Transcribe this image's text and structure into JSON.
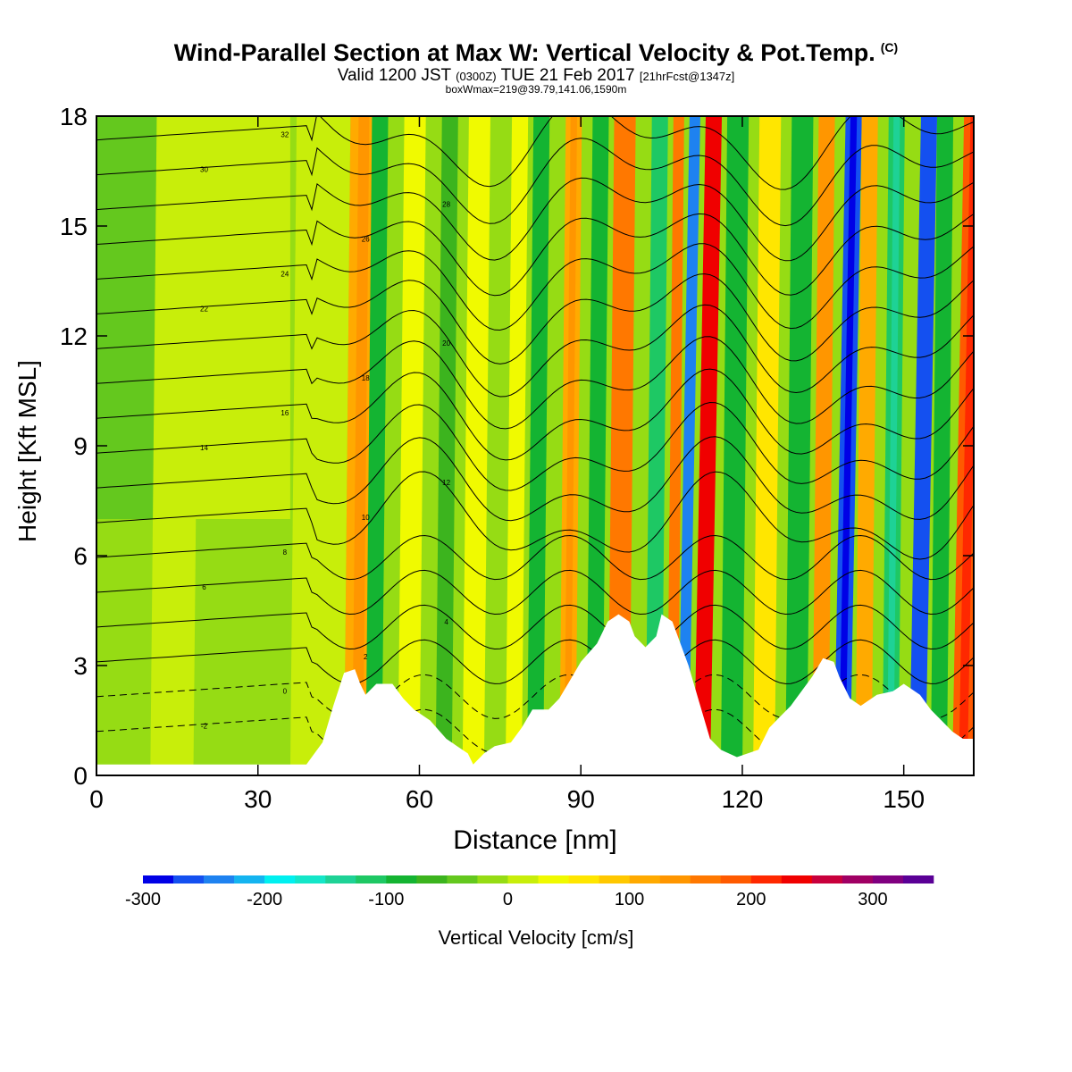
{
  "chart_data": {
    "type": "heatmap",
    "title": "Wind-Parallel Section at Max W: Vertical Velocity & Pot.Temp.",
    "copyright": "(C)",
    "valid_parts": {
      "prefix": "Valid 1200 JST",
      "utc": "(0300Z)",
      "date": "TUE 21 Feb 2017",
      "forecast": "[21hrFcst@1347z]"
    },
    "box_info": "boxWmax=219@39.79,141.06,1590m",
    "xlabel": "Distance [nm]",
    "ylabel": "Height [Kft MSL]",
    "xlim": [
      0,
      163
    ],
    "ylim": [
      0,
      18
    ],
    "x_ticks": [
      0,
      30,
      60,
      90,
      120,
      150
    ],
    "y_ticks": [
      0,
      3,
      6,
      9,
      12,
      15,
      18
    ],
    "x_tick_labels": [
      "0",
      "30",
      "60",
      "90",
      "120",
      "150"
    ],
    "y_tick_labels": [
      "0",
      "3",
      "6",
      "9",
      "12",
      "15",
      "18"
    ],
    "colorbar": {
      "label": "Vertical Velocity [cm/s]",
      "ticks": [
        "-300",
        "-200",
        "-100",
        "0",
        "100",
        "200",
        "300"
      ],
      "tick_values": [
        -300,
        -200,
        -100,
        0,
        100,
        200,
        300
      ],
      "range": [
        -300,
        350
      ],
      "step": 25,
      "colors": [
        "#0000e6",
        "#1450f0",
        "#1e82f0",
        "#14b4f0",
        "#00f0f0",
        "#14e6c8",
        "#1ed296",
        "#1ec864",
        "#14b432",
        "#3cb41e",
        "#64c81e",
        "#96dc14",
        "#c8ee0a",
        "#f0fa00",
        "#ffe600",
        "#ffc800",
        "#ffaa00",
        "#ff9600",
        "#ff7800",
        "#ff5a00",
        "#ff2800",
        "#f00000",
        "#c8003c",
        "#a00064",
        "#800080",
        "#5a0096"
      ]
    },
    "velocity_bands": [
      {
        "x": 10,
        "w": 8,
        "value": 20
      },
      {
        "x": 36,
        "w": 10,
        "value": 10
      },
      {
        "x": 46,
        "w": 5,
        "value": 120
      },
      {
        "x": 50,
        "w": 3,
        "value": -80
      },
      {
        "x": 56,
        "w": 4,
        "value": 40
      },
      {
        "x": 63,
        "w": 3,
        "value": -60
      },
      {
        "x": 68,
        "w": 4,
        "value": 30
      },
      {
        "x": 76,
        "w": 3,
        "value": 40
      },
      {
        "x": 80,
        "w": 3,
        "value": -90
      },
      {
        "x": 86,
        "w": 3,
        "value": 120
      },
      {
        "x": 91,
        "w": 3,
        "value": -100
      },
      {
        "x": 95,
        "w": 4,
        "value": 150
      },
      {
        "x": 102,
        "w": 3,
        "value": -110
      },
      {
        "x": 106,
        "w": 2,
        "value": 150
      },
      {
        "x": 108,
        "w": 2,
        "value": -240
      },
      {
        "x": 111,
        "w": 3,
        "value": 230
      },
      {
        "x": 116,
        "w": 4,
        "value": -90
      },
      {
        "x": 122,
        "w": 4,
        "value": 60
      },
      {
        "x": 128,
        "w": 4,
        "value": -80
      },
      {
        "x": 133,
        "w": 3,
        "value": 130
      },
      {
        "x": 137,
        "w": 3,
        "value": -270
      },
      {
        "x": 141,
        "w": 3,
        "value": 110
      },
      {
        "x": 146,
        "w": 3,
        "value": -120
      },
      {
        "x": 151,
        "w": 3,
        "value": -260
      },
      {
        "x": 155,
        "w": 3,
        "value": -100
      },
      {
        "x": 159,
        "w": 4,
        "value": 190
      }
    ],
    "terrain": [
      [
        0,
        0.3
      ],
      [
        20,
        0.3
      ],
      [
        39,
        0.3
      ],
      [
        40,
        0.5
      ],
      [
        42,
        0.9
      ],
      [
        44,
        1.9
      ],
      [
        46,
        2.8
      ],
      [
        48,
        2.9
      ],
      [
        49,
        2.5
      ],
      [
        50,
        2.2
      ],
      [
        52,
        2.5
      ],
      [
        55,
        2.5
      ],
      [
        57,
        2.1
      ],
      [
        59,
        1.8
      ],
      [
        62,
        1.5
      ],
      [
        65,
        1.0
      ],
      [
        67,
        0.8
      ],
      [
        69,
        0.6
      ],
      [
        70,
        0.3
      ],
      [
        72,
        0.6
      ],
      [
        74,
        0.8
      ],
      [
        77,
        0.9
      ],
      [
        79,
        1.3
      ],
      [
        81,
        1.8
      ],
      [
        84,
        1.8
      ],
      [
        86,
        2.1
      ],
      [
        88,
        2.6
      ],
      [
        90,
        3.1
      ],
      [
        93,
        3.6
      ],
      [
        95,
        4.2
      ],
      [
        97,
        4.4
      ],
      [
        99,
        4.2
      ],
      [
        100,
        3.8
      ],
      [
        102,
        3.5
      ],
      [
        104,
        3.8
      ],
      [
        105,
        4.4
      ],
      [
        107,
        4.2
      ],
      [
        108,
        3.8
      ],
      [
        110,
        3.0
      ],
      [
        112,
        2.0
      ],
      [
        114,
        1.0
      ],
      [
        116,
        0.7
      ],
      [
        119,
        0.5
      ],
      [
        123,
        0.7
      ],
      [
        125,
        1.3
      ],
      [
        127,
        1.6
      ],
      [
        129,
        1.9
      ],
      [
        131,
        2.3
      ],
      [
        133,
        2.7
      ],
      [
        135,
        3.2
      ],
      [
        137,
        3.1
      ],
      [
        138,
        2.7
      ],
      [
        140,
        2.1
      ],
      [
        142,
        1.9
      ],
      [
        145,
        2.2
      ],
      [
        148,
        2.3
      ],
      [
        150,
        2.5
      ],
      [
        153,
        2.2
      ],
      [
        155,
        1.8
      ],
      [
        157,
        1.5
      ],
      [
        159,
        1.2
      ],
      [
        161,
        1.0
      ],
      [
        163,
        1.0
      ]
    ],
    "potential_temperature_label_values": [
      "-2",
      "0",
      "2",
      "4",
      "6",
      "8",
      "10",
      "12",
      "14",
      "16",
      "18",
      "20",
      "22",
      "24",
      "26",
      "28",
      "30",
      "32"
    ]
  }
}
